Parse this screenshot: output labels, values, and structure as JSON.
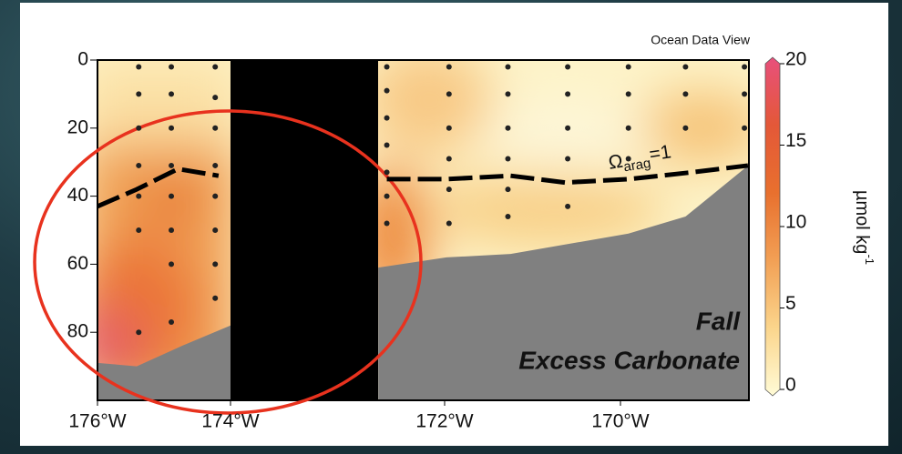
{
  "chart_data": {
    "type": "section",
    "source": "Ocean Data View",
    "annotations": [
      "Fall",
      "Excess Carbonate"
    ],
    "xlim": [
      -176,
      -168.5
    ],
    "ylim": [
      0,
      100
    ],
    "xticks": [
      {
        "value": -176,
        "label": "176°W"
      },
      {
        "value": -174,
        "label": "174°W"
      },
      {
        "value": -172,
        "label": "172°W"
      },
      {
        "value": -170,
        "label": "170°W"
      }
    ],
    "yticks": [
      0,
      20,
      40,
      60,
      80
    ],
    "samples": {
      "x": [
        -175.38,
        -175.38,
        -175.38,
        -175.38,
        -175.38,
        -175.38,
        -175.38,
        -174.89,
        -174.89,
        -174.89,
        -174.89,
        -174.89,
        -174.89,
        -174.89,
        -174.89,
        -174.23,
        -174.23,
        -174.23,
        -174.23,
        -174.23,
        -174.23,
        -174.23,
        -174.23,
        -172.54,
        -172.54,
        -172.54,
        -172.54,
        -172.54,
        -172.54,
        -172.54,
        -171.95,
        -171.95,
        -171.95,
        -171.95,
        -171.95,
        -171.95,
        -171.28,
        -171.28,
        -171.28,
        -171.28,
        -171.28,
        -171.28,
        -170.6,
        -170.6,
        -170.6,
        -170.6,
        -170.6,
        -169.91,
        -169.91,
        -169.91,
        -169.91,
        -169.26,
        -169.26,
        -169.26,
        -168.59,
        -168.59,
        -168.59
      ],
      "y": [
        2,
        10,
        20,
        31,
        40,
        50,
        80,
        2,
        10,
        20,
        31,
        40,
        50,
        60,
        77,
        2,
        11,
        20,
        31,
        40,
        50,
        60,
        70,
        2,
        9,
        17,
        25,
        33,
        40,
        48,
        2,
        10,
        20,
        29,
        38,
        48,
        2,
        10,
        20,
        29,
        38,
        46,
        2,
        10,
        20,
        29,
        43,
        2,
        10,
        20,
        29,
        2,
        10,
        20,
        2,
        10,
        20
      ]
    },
    "contour": {
      "label": "Ω",
      "label_sub": "arag",
      "label_rest": "=1",
      "x": [
        -176,
        -175.41,
        -174.79,
        -174.18,
        null,
        -172.54,
        -171.98,
        -171.25,
        -170.63,
        -169.91,
        -169.19,
        -168.55
      ],
      "y": [
        43,
        38,
        32,
        34,
        null,
        35,
        35,
        34,
        36,
        35,
        33,
        31
      ]
    },
    "seafloor": {
      "color": "#808080",
      "x": [
        -176,
        -175.41,
        -174.73,
        -174.0,
        null,
        -172.62,
        -171.98,
        -171.25,
        -169.91,
        -169.26,
        -168.5
      ],
      "y": [
        89,
        90,
        84,
        78,
        null,
        61,
        58,
        57,
        51,
        46,
        30
      ]
    },
    "colorbar": {
      "label": "µmol kg",
      "label_sup": "-1",
      "lim": [
        0,
        20
      ],
      "ticks": [
        20,
        15,
        10,
        5,
        0
      ],
      "colors": [
        "#fffbd6",
        "#fbd58c",
        "#f2a055",
        "#e8702e",
        "#e45838",
        "#e8507c"
      ]
    }
  }
}
